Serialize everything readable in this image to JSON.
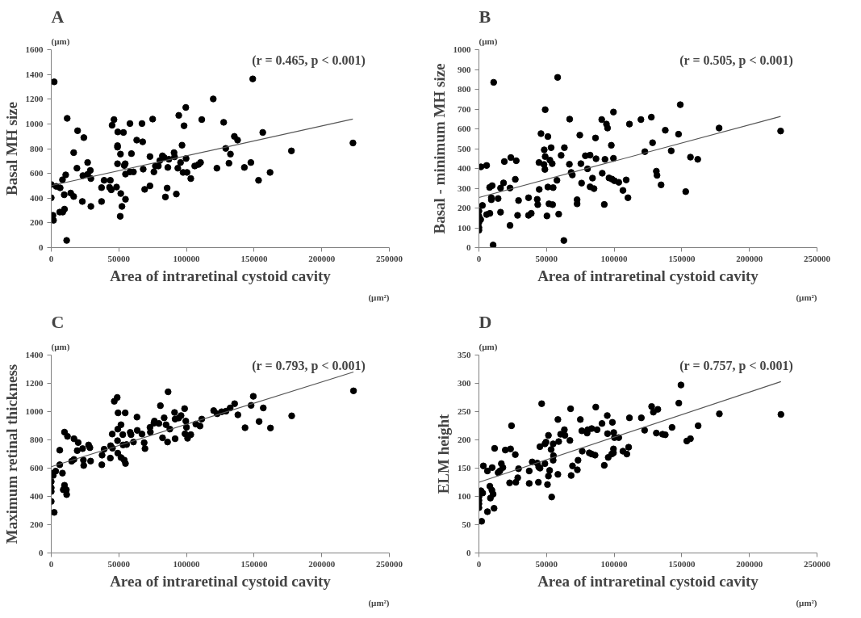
{
  "chart_data": [
    {
      "type": "scatter",
      "title": "A",
      "xlabel": "Area of intraretinal cystoid cavity",
      "ylabel": "Basal MH size",
      "annotations": [
        "(r = 0.465, p < 0.001)",
        "(µm)",
        "(µm²)"
      ],
      "xlim": [
        0,
        250000
      ],
      "ylim": [
        0,
        1600
      ],
      "xticks": [
        0,
        50000,
        100000,
        150000,
        200000,
        250000
      ],
      "yticks": [
        0,
        200,
        400,
        600,
        800,
        1000,
        1200,
        1400,
        1600
      ],
      "marker": "circle",
      "series": [
        {
          "color": "#000000",
          "x": [
            2200,
            149000,
            119800,
            99500,
            94300,
            98200,
            11800,
            46400,
            45000,
            58200,
            67100,
            75000,
            111300,
            127500,
            156400,
            19500,
            24100,
            49200,
            53400,
            135400,
            137800,
            63200,
            67600,
            49000,
            49000,
            96700,
            177600,
            223100,
            16600,
            129000,
            51200,
            59300,
            73000,
            82200,
            83500,
            90800,
            91200,
            87000,
            80300,
            99700,
            132500,
            26900,
            49000,
            54700,
            54000,
            77000,
            79200,
            95600,
            110400,
            108900,
            106100,
            131400,
            147600,
            19000,
            68000,
            86200,
            93600,
            122500,
            142800,
            28900,
            10700,
            23400,
            26900,
            29300,
            54900,
            58200,
            60800,
            75900,
            97500,
            100400,
            161800,
            8300,
            0,
            3700,
            6600,
            39100,
            43700,
            103200,
            153300,
            37200,
            43100,
            44400,
            48300,
            69100,
            73000,
            85700,
            92500,
            84400,
            51400,
            14400,
            16600,
            9600,
            0,
            23000,
            37200,
            54900,
            29300,
            52300,
            6300,
            8500,
            9800,
            51000,
            1300,
            1700,
            11400
          ],
          "values": [
            1340,
            1364,
            1202,
            1133,
            1069,
            985,
            1045,
            1035,
            989,
            1003,
            1003,
            1039,
            1035,
            1013,
            931,
            945,
            889,
            935,
            931,
            899,
            869,
            869,
            855,
            824,
            812,
            828,
            782,
            846,
            768,
            802,
            756,
            760,
            736,
            742,
            728,
            768,
            734,
            714,
            704,
            720,
            756,
            688,
            678,
            678,
            664,
            660,
            660,
            688,
            688,
            672,
            660,
            682,
            688,
            642,
            634,
            648,
            642,
            642,
            648,
            624,
            588,
            582,
            592,
            558,
            594,
            612,
            612,
            612,
            608,
            608,
            608,
            548,
            510,
            495,
            483,
            544,
            544,
            558,
            544,
            485,
            487,
            467,
            489,
            471,
            499,
            481,
            433,
            409,
            437,
            441,
            413,
            427,
            403,
            373,
            373,
            391,
            333,
            333,
            287,
            287,
            311,
            253,
            261,
            221,
            58
          ]
        },
        {
          "type": "line",
          "marker": "none",
          "color": "#555555",
          "x": [
            0,
            223000
          ],
          "values": [
            501,
            1039
          ]
        }
      ]
    },
    {
      "type": "scatter",
      "title": "B",
      "xlabel": "Area of intraretinal cystoid cavity",
      "ylabel": "Basal - minimum MH size",
      "annotations": [
        "(r = 0.505, p < 0.001)",
        "(µm)",
        "(µm²)"
      ],
      "xlim": [
        0,
        250000
      ],
      "ylim": [
        0,
        1000
      ],
      "xticks": [
        0,
        50000,
        100000,
        150000,
        200000,
        250000
      ],
      "yticks": [
        0,
        100,
        200,
        300,
        400,
        500,
        600,
        700,
        800,
        900,
        1000
      ],
      "marker": "circle",
      "series": [
        {
          "color": "#000000",
          "x": [
            10900,
            58200,
            49000,
            148900,
            99500,
            67100,
            90800,
            94300,
            95100,
            119800,
            127500,
            111300,
            45900,
            51000,
            74600,
            86200,
            137800,
            147600,
            177600,
            223100,
            128400,
            53400,
            63200,
            48300,
            97900,
            122700,
            142200,
            60800,
            49000,
            52500,
            54200,
            44400,
            48100,
            23600,
            27600,
            18800,
            78700,
            82200,
            86600,
            93200,
            99500,
            156400,
            161800,
            1500,
            5700,
            66900,
            75400,
            48800,
            80300,
            68200,
            69100,
            91200,
            131200,
            131700,
            134700,
            26900,
            57700,
            84000,
            96200,
            98400,
            100200,
            103400,
            108900,
            7900,
            9800,
            16000,
            23000,
            18200,
            75900,
            82200,
            85100,
            51000,
            54900,
            44600,
            106500,
            152900,
            9200,
            9200,
            14200,
            29300,
            36700,
            43100,
            110200,
            72600,
            51800,
            54500,
            43500,
            72600,
            92700,
            2600,
            16000,
            0,
            5700,
            8100,
            28600,
            36700,
            38700,
            50300,
            59000,
            0,
            1300,
            0,
            0,
            0,
            23000,
            62800,
            10500
          ],
          "values": [
            835,
            860,
            697,
            722,
            685,
            649,
            647,
            624,
            604,
            647,
            659,
            624,
            576,
            561,
            568,
            554,
            593,
            573,
            604,
            589,
            530,
            505,
            505,
            494,
            517,
            485,
            489,
            466,
            460,
            442,
            424,
            430,
            420,
            455,
            439,
            435,
            464,
            467,
            449,
            446,
            451,
            457,
            446,
            408,
            415,
            421,
            424,
            395,
            398,
            380,
            367,
            376,
            386,
            365,
            317,
            345,
            340,
            351,
            352,
            346,
            338,
            330,
            342,
            304,
            313,
            301,
            301,
            327,
            326,
            307,
            298,
            306,
            303,
            294,
            289,
            283,
            252,
            242,
            248,
            238,
            252,
            244,
            252,
            242,
            221,
            217,
            217,
            221,
            218,
            213,
            179,
            185,
            167,
            173,
            163,
            163,
            173,
            160,
            169,
            159,
            142,
            127,
            101,
            88,
            112,
            36,
            13
          ]
        },
        {
          "type": "line",
          "marker": "none",
          "color": "#555555",
          "x": [
            0,
            223100
          ],
          "values": [
            253,
            663
          ]
        }
      ]
    },
    {
      "type": "scatter",
      "title": "C",
      "xlabel": "Area of intraretinal cystoid cavity",
      "ylabel": "Maximum retinal thickness",
      "annotations": [
        "(r = 0.793, p < 0.001)",
        "(µm)",
        "(µm²)"
      ],
      "xlim": [
        0,
        250000
      ],
      "ylim": [
        0,
        1400
      ],
      "xticks": [
        0,
        50000,
        100000,
        150000,
        200000,
        250000
      ],
      "yticks": [
        0,
        200,
        400,
        600,
        800,
        1000,
        1200,
        1400
      ],
      "marker": "circle",
      "series": [
        {
          "color": "#000000",
          "x": [
            223500,
            86400,
            48800,
            46600,
            149400,
            147800,
            156800,
            135600,
            132300,
            129200,
            126000,
            120100,
            122700,
            138000,
            177800,
            80700,
            98600,
            49400,
            54700,
            91200,
            96000,
            94300,
            99500,
            91600,
            83500,
            63400,
            153700,
            143300,
            162100,
            111300,
            106900,
            110000,
            100000,
            84900,
            87700,
            76300,
            75900,
            79600,
            73000,
            73300,
            63600,
            58400,
            59000,
            67100,
            51600,
            49200,
            52900,
            45100,
            98900,
            103200,
            100800,
            82300,
            91600,
            86000,
            60800,
            68700,
            69300,
            49000,
            53100,
            55700,
            45300,
            43900,
            49200,
            51600,
            54000,
            54900,
            43700,
            39100,
            37600,
            37400,
            9800,
            12000,
            16800,
            19900,
            27600,
            28600,
            23200,
            19200,
            6300,
            29100,
            23800,
            24000,
            16800,
            15100,
            6300,
            3300,
            8300,
            0,
            1500,
            0,
            0,
            0,
            9800,
            8900,
            11200,
            11400,
            0,
            2200
          ],
          "values": [
            1147,
            1140,
            1100,
            1073,
            1108,
            1044,
            1026,
            1056,
            1026,
            1003,
            999,
            1007,
            985,
            977,
            970,
            1042,
            1021,
            991,
            991,
            994,
            972,
            955,
            933,
            947,
            956,
            961,
            930,
            886,
            884,
            947,
            912,
            898,
            889,
            907,
            876,
            933,
            918,
            916,
            888,
            855,
            867,
            853,
            837,
            841,
            907,
            876,
            837,
            841,
            843,
            837,
            811,
            815,
            808,
            785,
            785,
            780,
            738,
            794,
            764,
            767,
            741,
            759,
            706,
            675,
            657,
            633,
            671,
            734,
            692,
            624,
            855,
            825,
            808,
            781,
            764,
            745,
            738,
            724,
            727,
            650,
            657,
            619,
            662,
            649,
            624,
            579,
            565,
            563,
            549,
            505,
            461,
            435,
            479,
            447,
            447,
            413,
            365,
            287
          ]
        },
        {
          "type": "line",
          "marker": "none",
          "color": "#555555",
          "x": [
            0,
            223500
          ],
          "values": [
            610,
            1280
          ]
        }
      ]
    },
    {
      "type": "scatter",
      "title": "D",
      "xlabel": "Area of intraretinal cystoid cavity",
      "ylabel": "ELM height",
      "annotations": [
        "(r = 0.757, p < 0.001)",
        "(µm)",
        "(µm²)"
      ],
      "xlim": [
        0,
        250000
      ],
      "ylim": [
        0,
        350
      ],
      "xticks": [
        0,
        50000,
        100000,
        150000,
        200000,
        250000
      ],
      "yticks": [
        0,
        50,
        100,
        150,
        200,
        250,
        300,
        350
      ],
      "marker": "circle",
      "series": [
        {
          "color": "#000000",
          "x": [
            149400,
            147800,
            46400,
            67800,
            86400,
            127700,
            132300,
            129000,
            177800,
            223300,
            94900,
            120100,
            111300,
            58400,
            75000,
            98700,
            91000,
            24100,
            162100,
            142800,
            122500,
            63200,
            76100,
            80000,
            83400,
            87400,
            80500,
            60400,
            63600,
            51400,
            99700,
            95100,
            131200,
            135800,
            137800,
            100200,
            103400,
            67300,
            49600,
            48800,
            54900,
            45100,
            59000,
            153700,
            156400,
            53400,
            11600,
            19500,
            23400,
            26900,
            76400,
            81600,
            83300,
            85900,
            99500,
            99500,
            98200,
            110700,
            106500,
            109400,
            95600,
            55100,
            54900,
            73300,
            39400,
            43100,
            48800,
            44200,
            45200,
            69200,
            92700,
            72800,
            3300,
            6300,
            9800,
            16600,
            17700,
            14200,
            15500,
            29300,
            37200,
            52300,
            58400,
            68200,
            51400,
            28700,
            22700,
            27300,
            37200,
            44000,
            50700,
            8100,
            9600,
            1500,
            2800,
            10500,
            0,
            8500,
            0,
            0,
            0,
            11200,
            6300,
            53800,
            2000
          ],
          "values": [
            297,
            265,
            264,
            255,
            258,
            259,
            254,
            249,
            246,
            245,
            243,
            239,
            239,
            236,
            236,
            231,
            229,
            225,
            225,
            222,
            217,
            218,
            216,
            212,
            220,
            218,
            218,
            210,
            208,
            208,
            213,
            211,
            212,
            210,
            209,
            204,
            204,
            199,
            196,
            193,
            193,
            188,
            197,
            198,
            202,
            183,
            185,
            182,
            184,
            174,
            180,
            177,
            175,
            173,
            184,
            177,
            175,
            187,
            180,
            175,
            169,
            172,
            164,
            164,
            161,
            159,
            158,
            152,
            150,
            154,
            155,
            147,
            154,
            145,
            151,
            158,
            151,
            142,
            145,
            149,
            145,
            146,
            139,
            137,
            136,
            133,
            124,
            125,
            123,
            125,
            121,
            118,
            111,
            110,
            106,
            104,
            99,
            97,
            93,
            87,
            80,
            79,
            73,
            99,
            56
          ]
        },
        {
          "type": "line",
          "marker": "none",
          "color": "#555555",
          "x": [
            0,
            223300
          ],
          "values": [
            125,
            303
          ]
        }
      ]
    }
  ]
}
